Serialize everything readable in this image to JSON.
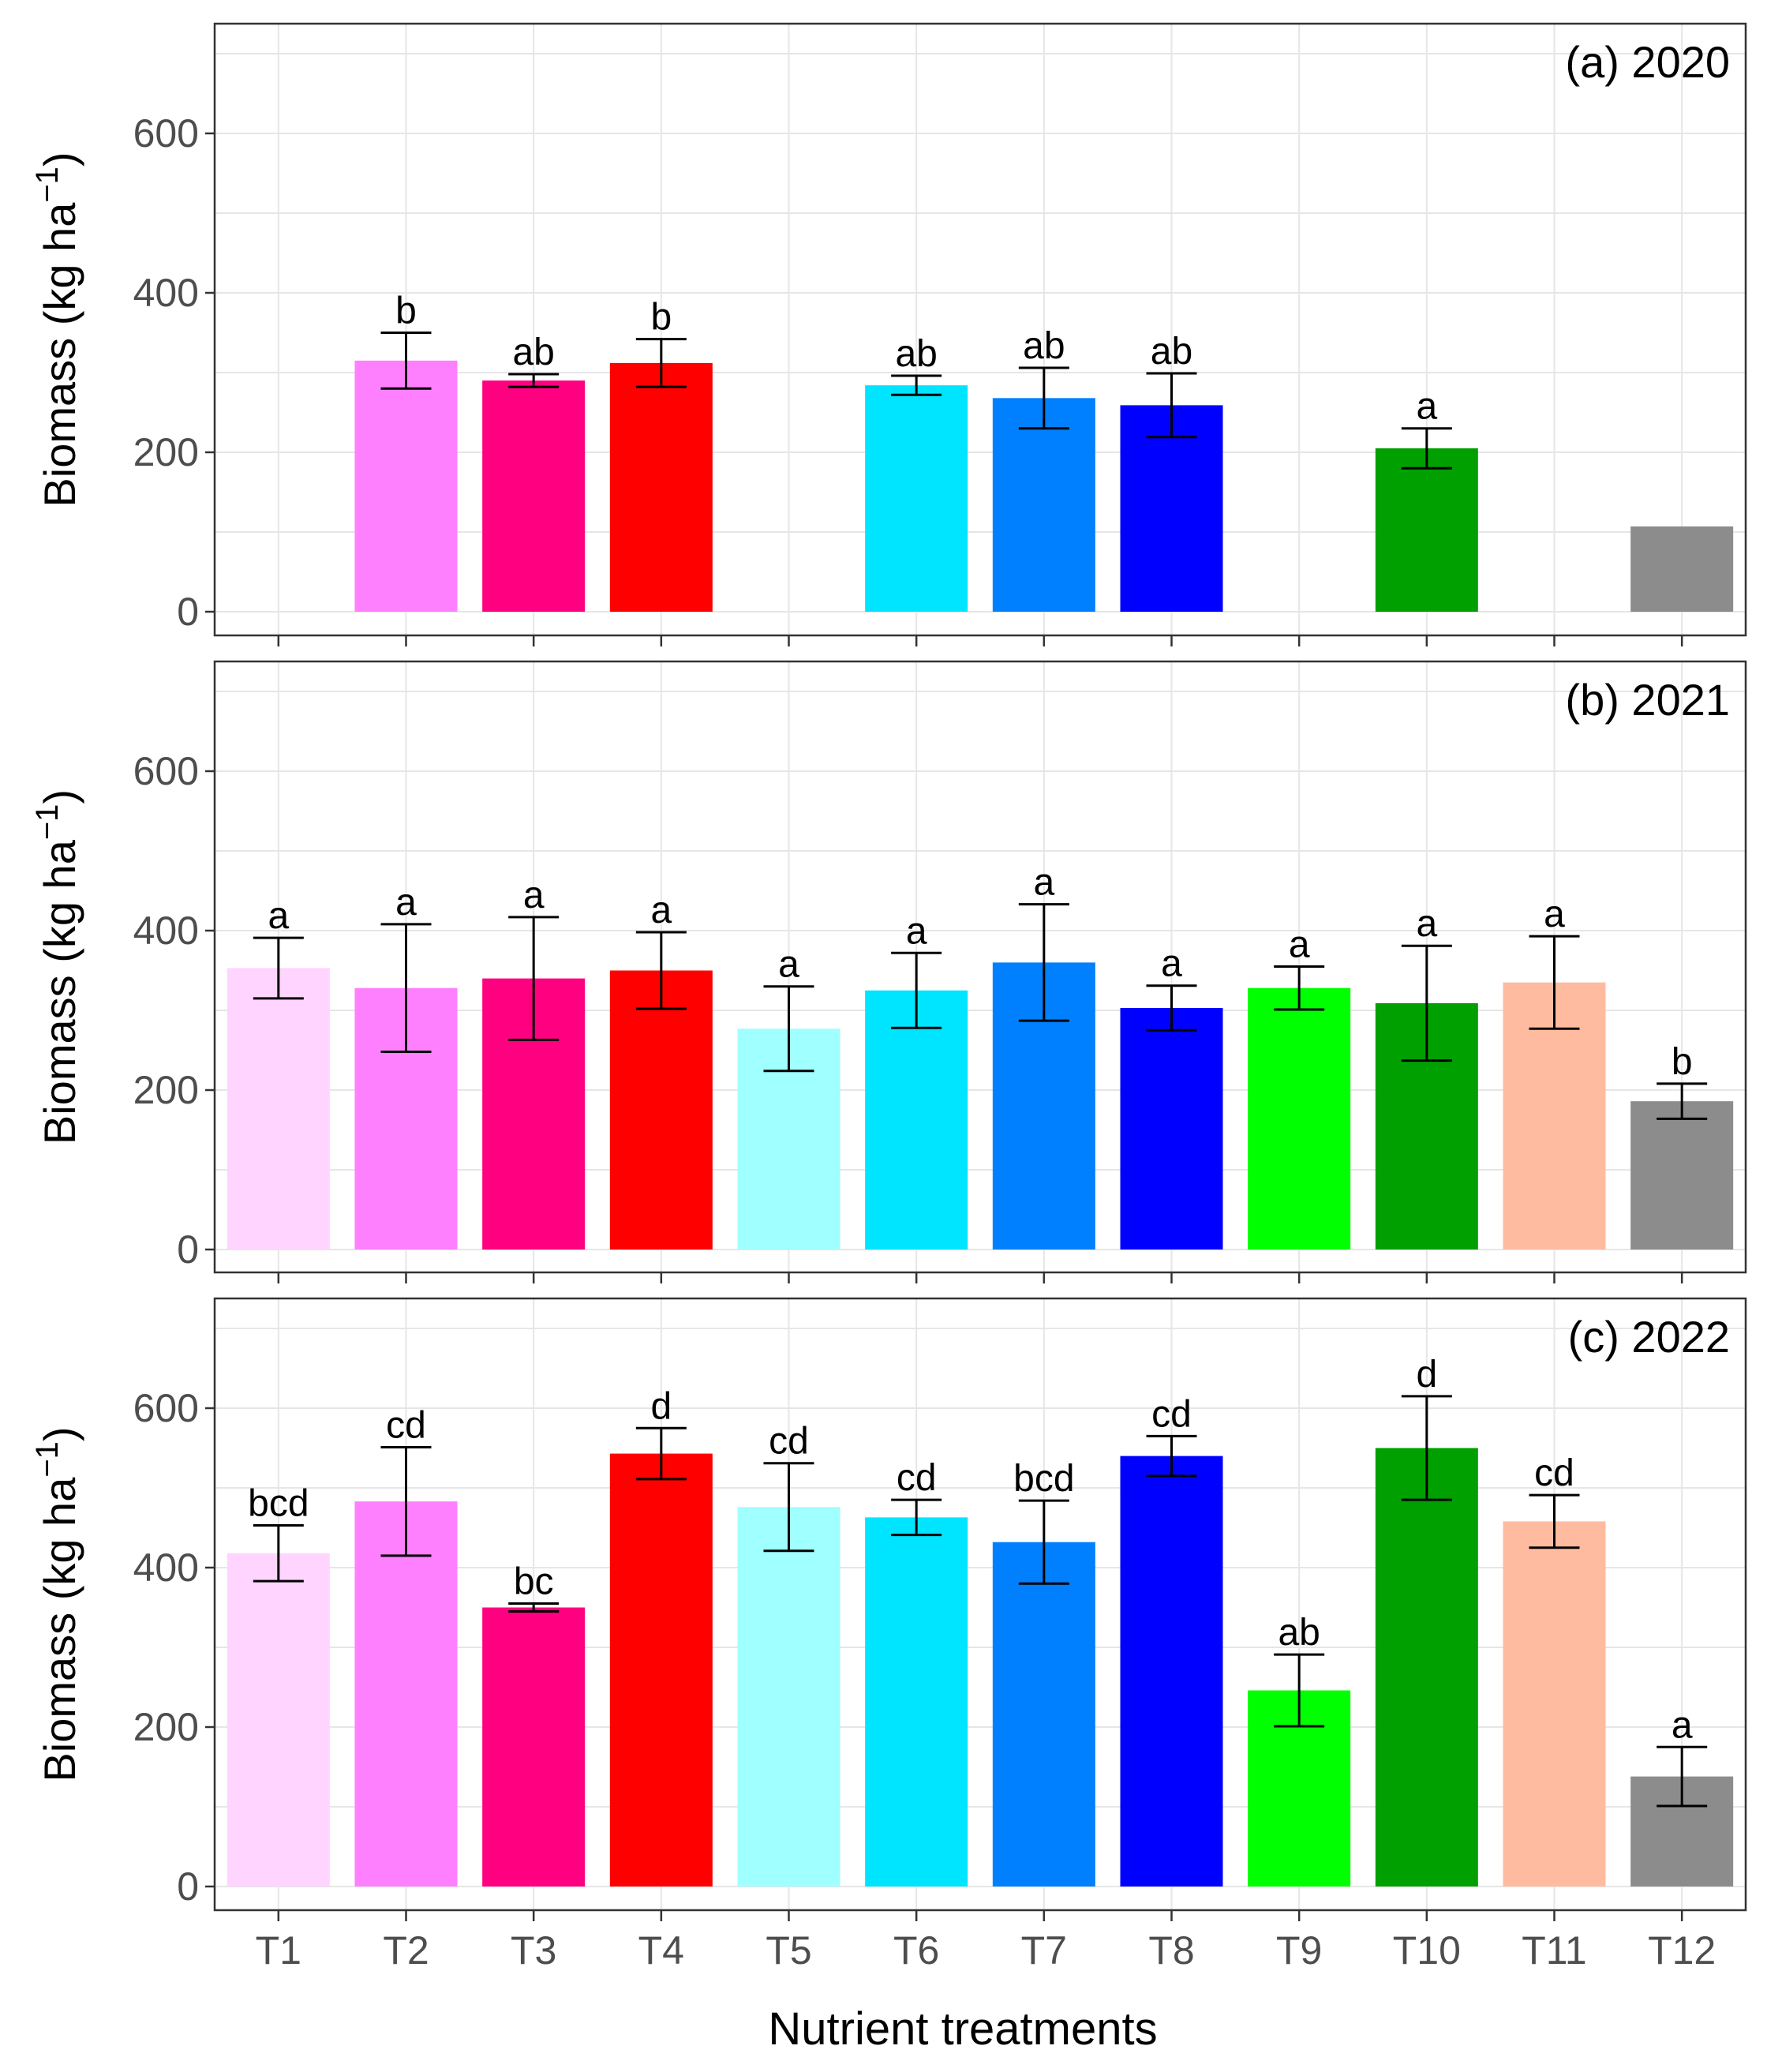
{
  "chart_data": [
    {
      "type": "bar",
      "panel_label": "(a) 2020",
      "ylabel": "Biomass (kg ha",
      "ylabel_sup": "−1",
      "ylabel_close": ")",
      "ylim": [
        0,
        730
      ],
      "yticks": [
        0,
        200,
        400,
        600
      ],
      "categories": [
        "T1",
        "T2",
        "T3",
        "T4",
        "T5",
        "T6",
        "T7",
        "T8",
        "T9",
        "T10",
        "T11",
        "T12"
      ],
      "values": [
        null,
        315,
        290,
        312,
        null,
        284,
        268,
        259,
        null,
        205,
        null,
        107
      ],
      "errors": [
        null,
        35,
        8,
        30,
        null,
        12,
        38,
        40,
        null,
        25,
        null,
        null
      ],
      "labels": [
        "",
        "b",
        "ab",
        "b",
        "",
        "ab",
        "ab",
        "ab",
        "",
        "a",
        "",
        ""
      ]
    },
    {
      "type": "bar",
      "panel_label": "(b) 2021",
      "ylabel": "Biomass (kg ha",
      "ylabel_sup": "−1",
      "ylabel_close": ")",
      "ylim": [
        0,
        730
      ],
      "yticks": [
        0,
        200,
        400,
        600
      ],
      "categories": [
        "T1",
        "T2",
        "T3",
        "T4",
        "T5",
        "T6",
        "T7",
        "T8",
        "T9",
        "T10",
        "T11",
        "T12"
      ],
      "values": [
        353,
        328,
        340,
        350,
        277,
        325,
        360,
        303,
        328,
        309,
        335,
        186
      ],
      "errors": [
        38,
        80,
        77,
        48,
        53,
        47,
        73,
        28,
        27,
        72,
        58,
        22
      ],
      "labels": [
        "a",
        "a",
        "a",
        "a",
        "a",
        "a",
        "a",
        "a",
        "a",
        "a",
        "a",
        "b"
      ]
    },
    {
      "type": "bar",
      "panel_label": "(c) 2022",
      "ylabel": "Biomass (kg ha",
      "ylabel_sup": "−1",
      "ylabel_close": ")",
      "ylim": [
        0,
        730
      ],
      "yticks": [
        0,
        200,
        400,
        600
      ],
      "categories": [
        "T1",
        "T2",
        "T3",
        "T4",
        "T5",
        "T6",
        "T7",
        "T8",
        "T9",
        "T10",
        "T11",
        "T12"
      ],
      "values": [
        418,
        483,
        350,
        543,
        476,
        463,
        432,
        540,
        246,
        550,
        458,
        138
      ],
      "errors": [
        35,
        68,
        5,
        32,
        55,
        22,
        52,
        25,
        45,
        65,
        33,
        37
      ],
      "labels": [
        "bcd",
        "cd",
        "bc",
        "d",
        "cd",
        "cd",
        "bcd",
        "cd",
        "ab",
        "d",
        "cd",
        "a"
      ]
    }
  ],
  "xlabel": "Nutrient treatments",
  "bar_colors": [
    "#FFD4FF",
    "#FF80FF",
    "#FF0080",
    "#FF0000",
    "#A0FFFF",
    "#00E5FF",
    "#0080FF",
    "#0000FF",
    "#00FF00",
    "#00A000",
    "#FFBBA0",
    "#8C8C8C"
  ]
}
